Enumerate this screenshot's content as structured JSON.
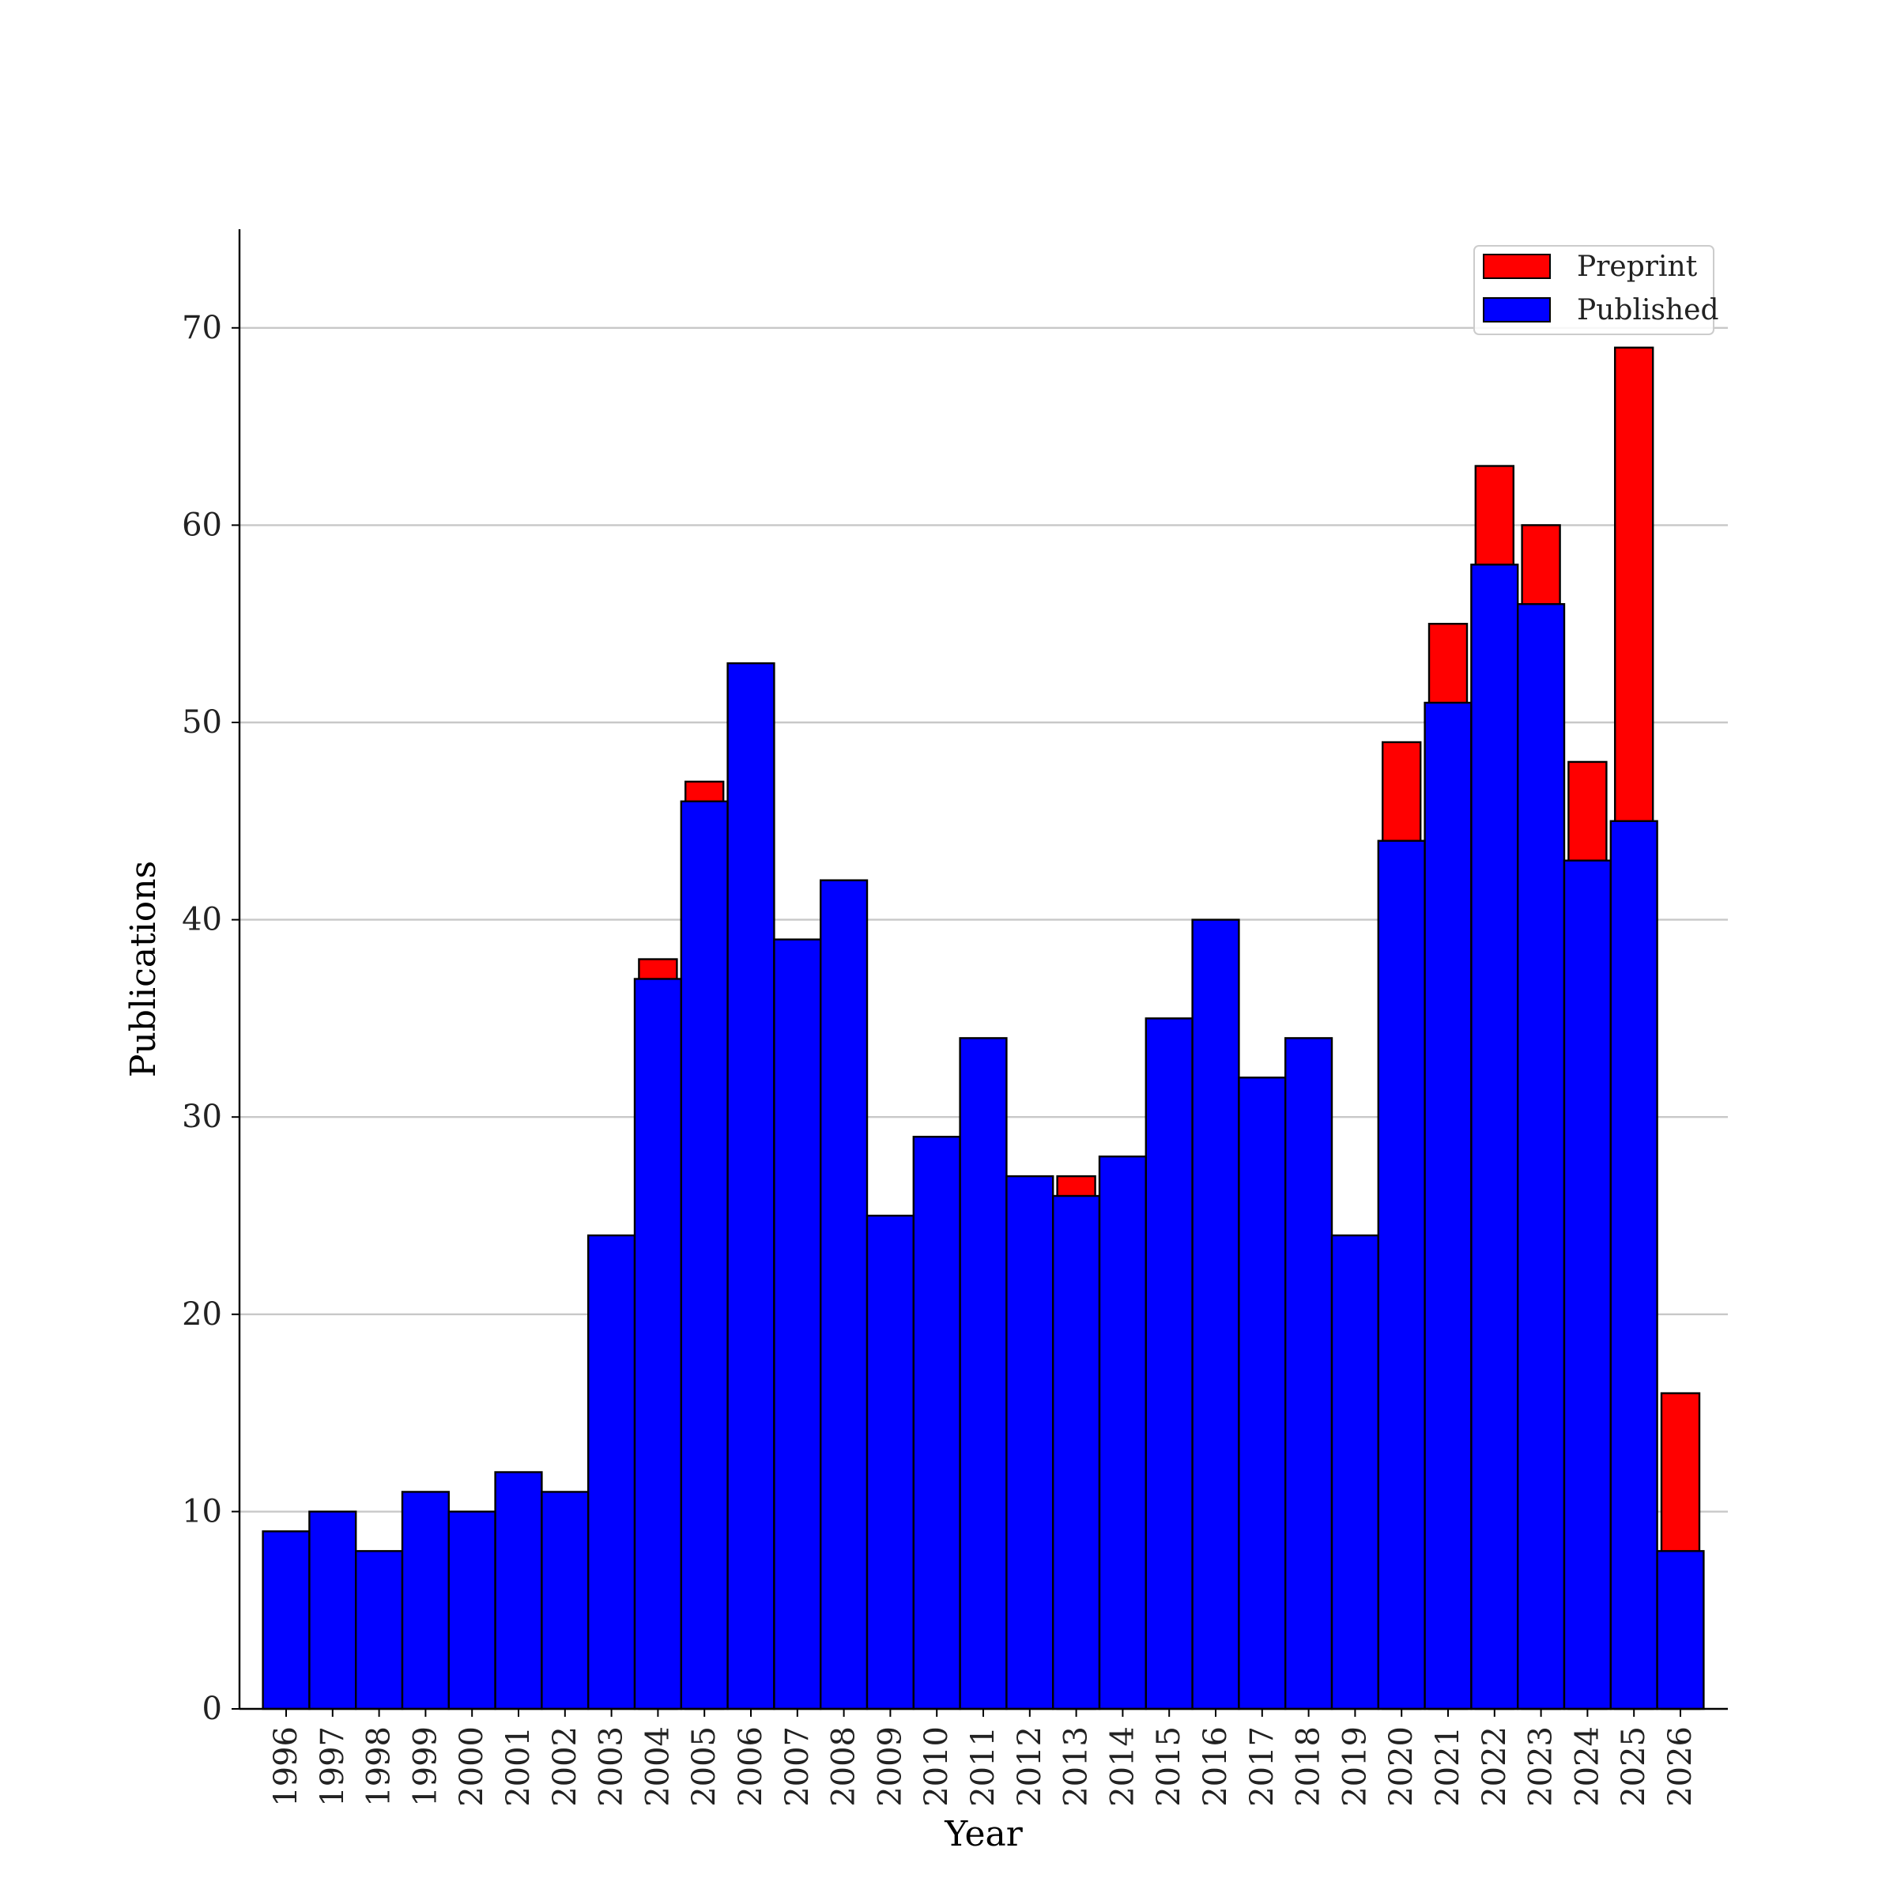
{
  "chart_data": {
    "type": "bar",
    "stacked": false,
    "title": "",
    "xlabel": "Year",
    "ylabel": "Publications",
    "ylim": [
      0,
      75
    ],
    "yticks": [
      0,
      10,
      20,
      30,
      40,
      50,
      60,
      70
    ],
    "grid": "horizontal",
    "legend_position": "top-right",
    "categories": [
      "1996",
      "1997",
      "1998",
      "1999",
      "2000",
      "2001",
      "2002",
      "2003",
      "2004",
      "2005",
      "2006",
      "2007",
      "2008",
      "2009",
      "2010",
      "2011",
      "2012",
      "2013",
      "2014",
      "2015",
      "2016",
      "2017",
      "2018",
      "2019",
      "2020",
      "2021",
      "2022",
      "2023",
      "2024",
      "2025",
      "2026"
    ],
    "series": [
      {
        "name": "Preprint",
        "color": "#ff0000",
        "values": [
          0,
          0,
          0,
          0,
          0,
          0,
          0,
          0,
          38,
          47,
          0,
          0,
          0,
          0,
          0,
          0,
          0,
          27,
          0,
          0,
          0,
          0,
          0,
          0,
          49,
          55,
          63,
          60,
          48,
          69,
          16
        ]
      },
      {
        "name": "Published",
        "color": "#0000ff",
        "values": [
          9,
          10,
          8,
          11,
          10,
          12,
          11,
          24,
          37,
          46,
          53,
          39,
          42,
          25,
          29,
          34,
          27,
          26,
          28,
          35,
          40,
          32,
          34,
          24,
          44,
          51,
          58,
          56,
          43,
          45,
          8
        ]
      }
    ]
  }
}
